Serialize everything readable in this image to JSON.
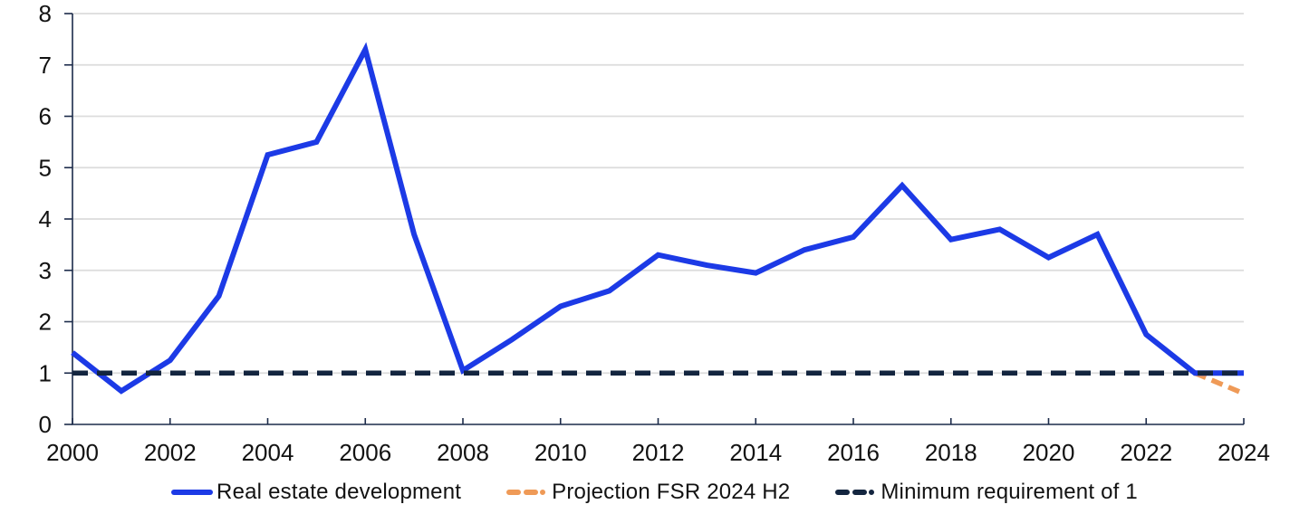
{
  "chart_data": {
    "type": "line",
    "title": "",
    "xlabel": "",
    "ylabel": "",
    "x": [
      2000,
      2001,
      2002,
      2003,
      2004,
      2005,
      2006,
      2007,
      2008,
      2009,
      2010,
      2011,
      2012,
      2013,
      2014,
      2015,
      2016,
      2017,
      2018,
      2019,
      2020,
      2021,
      2022,
      2023,
      2024
    ],
    "xticks": [
      2000,
      2002,
      2004,
      2006,
      2008,
      2010,
      2012,
      2014,
      2016,
      2018,
      2020,
      2022,
      2024
    ],
    "yticks": [
      0,
      1,
      2,
      3,
      4,
      5,
      6,
      7,
      8
    ],
    "xlim": [
      2000,
      2024
    ],
    "ylim": [
      0,
      8
    ],
    "grid": true,
    "legend_position": "bottom",
    "grid_color": "#dcdcdc",
    "axis_color": "#1c2b4a",
    "text_color": "#121212",
    "series": [
      {
        "name": "Real estate development",
        "color": "#1c3ae6",
        "style": "solid",
        "width": 6,
        "z": 2,
        "values": [
          1.4,
          0.65,
          1.25,
          2.5,
          5.25,
          5.5,
          7.3,
          3.7,
          1.05,
          1.65,
          2.3,
          2.6,
          3.3,
          3.1,
          2.95,
          3.4,
          3.65,
          4.65,
          3.6,
          3.8,
          3.25,
          3.7,
          1.75,
          1.0,
          1.0
        ]
      },
      {
        "name": "Projection FSR 2024 H2",
        "color": "#ef9a57",
        "style": "dashed",
        "dash": "13 7",
        "width": 5.5,
        "z": 1,
        "values": [
          null,
          null,
          null,
          null,
          null,
          null,
          null,
          null,
          null,
          null,
          null,
          null,
          null,
          null,
          null,
          null,
          null,
          null,
          null,
          null,
          null,
          null,
          null,
          1.0,
          0.6
        ]
      },
      {
        "name": "Minimum requirement of 1",
        "color": "#13253f",
        "style": "dashed",
        "dash": "17 10",
        "width": 5.5,
        "z": 3,
        "values": [
          1.0,
          1.0,
          1.0,
          1.0,
          1.0,
          1.0,
          1.0,
          1.0,
          1.0,
          1.0,
          1.0,
          1.0,
          1.0,
          1.0,
          1.0,
          1.0,
          1.0,
          1.0,
          1.0,
          1.0,
          1.0,
          1.0,
          1.0,
          1.0,
          1.0
        ]
      }
    ]
  }
}
